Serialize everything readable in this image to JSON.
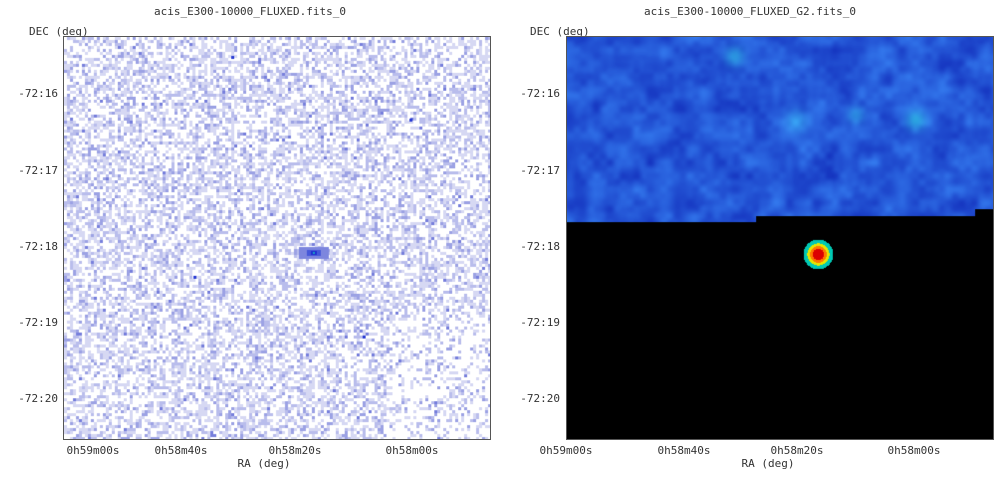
{
  "panels": [
    {
      "title": "acis_E300-10000_FLUXED.fits_0",
      "y_axis_label": "DEC (deg)",
      "x_axis_label": "RA (deg)",
      "y_ticks": [
        "-72:16",
        "-72:17",
        "-72:18",
        "-72:19",
        "-72:20"
      ],
      "x_ticks": [
        "0h59m00s",
        "0h58m40s",
        "0h58m20s",
        "0h58m00s"
      ],
      "style": "noisy-binned",
      "colors": {
        "base": "#c8cbf0",
        "accent": "#2a3bd8"
      }
    },
    {
      "title": "acis_E300-10000_FLUXED_G2.fits_0",
      "y_axis_label": "DEC (deg)",
      "x_axis_label": "RA (deg)",
      "y_ticks": [
        "-72:16",
        "-72:17",
        "-72:18",
        "-72:19",
        "-72:20"
      ],
      "x_ticks": [
        "0h59m00s",
        "0h58m40s",
        "0h58m20s",
        "0h58m00s"
      ],
      "style": "smoothed",
      "colors": {
        "base": "#1f3fe0",
        "dark": "#0a1fb8",
        "hot": "#ff0000"
      }
    }
  ]
}
